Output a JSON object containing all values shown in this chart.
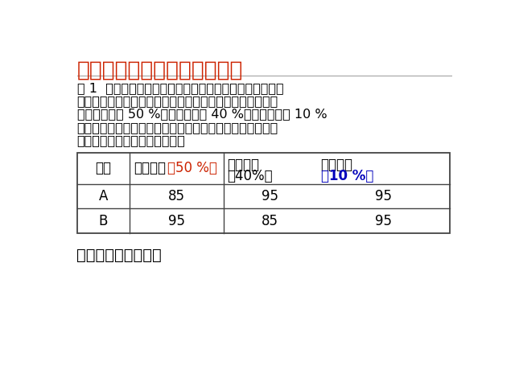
{
  "title": "活动四：指导应用，强化新知",
  "title_color": "#CC2200",
  "body_text_color": "#000000",
  "background_color": "#FFFFFF",
  "para_lines": [
    "例 1  一次演讲比赛中，评委将从演讲内容、演讲能力、演",
    "讲效果三个方面为选手打分．各项成绩均按百分制，然后再",
    "按演讲内容占 50 %、演讲能力占 40 %、演讲效果占 10 %",
    "的比例，计算选手的综合成绩（百分制）．进入决赛的前两",
    "名选手的单项成绩如下表所示："
  ],
  "question": "请确定两人的名次．",
  "col2_h1": "演讲内容",
  "col2_h2": "（50 %）",
  "col3_h1": "演讲能力",
  "col3_h2": "（40%）",
  "col4_h1": "演讲效果",
  "col4_h2": "（10 %）",
  "rows": [
    [
      "A",
      "85",
      "95",
      "95"
    ],
    [
      "B",
      "95",
      "85",
      "95"
    ]
  ],
  "highlight_red": "#CC2200",
  "highlight_blue": "#0000BB",
  "border_color": "#444444",
  "font_size_title": 19,
  "font_size_body": 11.5,
  "font_size_table": 12,
  "font_size_question": 14
}
